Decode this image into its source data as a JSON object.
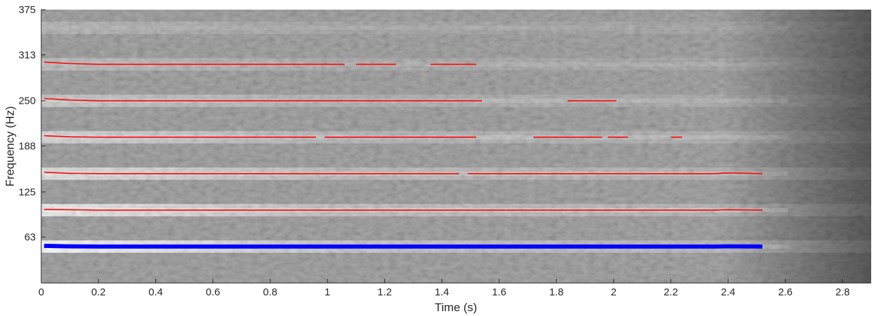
{
  "chart_data": {
    "type": "spectrogram",
    "xlabel": "Time (s)",
    "ylabel": "Frequency (Hz)",
    "xlim": [
      0,
      2.9
    ],
    "ylim": [
      0,
      375
    ],
    "xticks": [
      0,
      0.2,
      0.4,
      0.6,
      0.8,
      1,
      1.2,
      1.4,
      1.6,
      1.8,
      2,
      2.2,
      2.4,
      2.6,
      2.8
    ],
    "xtick_labels": [
      "0",
      "0.2",
      "0.4",
      "0.6",
      "0.8",
      "1",
      "1.2",
      "1.4",
      "1.6",
      "1.8",
      "2",
      "2.2",
      "2.4",
      "2.6",
      "2.8"
    ],
    "yticks": [
      63,
      125,
      188,
      250,
      313,
      375
    ],
    "ytick_labels": [
      "63",
      "125",
      "188",
      "250",
      "313",
      "375"
    ],
    "grid": false,
    "background": "grayscale spectrogram",
    "bright_harmonic_bands_hz": [
      50,
      100,
      150,
      200,
      250,
      300,
      350
    ],
    "fundamental_track": {
      "color": "#0000ff",
      "points": [
        [
          0.01,
          51
        ],
        [
          0.1,
          50.3
        ],
        [
          0.2,
          50
        ],
        [
          2.35,
          50
        ],
        [
          2.4,
          50.3
        ],
        [
          2.52,
          50
        ]
      ]
    },
    "harmonic_tracks": {
      "color": "#ff0000",
      "series": [
        {
          "segments": [
            [
              [
                0.01,
                101
              ],
              [
                0.1,
                100.5
              ],
              [
                0.2,
                100
              ],
              [
                2.35,
                100
              ],
              [
                2.4,
                100.5
              ],
              [
                2.52,
                100
              ]
            ]
          ]
        },
        {
          "segments": [
            [
              [
                0.01,
                152
              ],
              [
                0.1,
                150.5
              ],
              [
                0.2,
                150
              ],
              [
                1.46,
                150
              ]
            ],
            [
              [
                1.49,
                150
              ],
              [
                2.35,
                150
              ],
              [
                2.4,
                151
              ],
              [
                2.52,
                150
              ]
            ]
          ]
        },
        {
          "segments": [
            [
              [
                0.01,
                202
              ],
              [
                0.1,
                200.5
              ],
              [
                0.2,
                200
              ],
              [
                0.96,
                200
              ]
            ],
            [
              [
                0.99,
                200
              ],
              [
                1.52,
                200
              ]
            ],
            [
              [
                1.72,
                200
              ],
              [
                1.96,
                200
              ]
            ],
            [
              [
                1.98,
                200
              ],
              [
                2.05,
                200
              ]
            ],
            [
              [
                2.2,
                200
              ],
              [
                2.24,
                200
              ]
            ]
          ]
        },
        {
          "segments": [
            [
              [
                0.01,
                253
              ],
              [
                0.1,
                251
              ],
              [
                0.2,
                250
              ],
              [
                1.54,
                250
              ]
            ],
            [
              [
                1.84,
                250
              ],
              [
                2.01,
                250
              ]
            ]
          ]
        },
        {
          "segments": [
            [
              [
                0.01,
                303
              ],
              [
                0.1,
                301
              ],
              [
                0.2,
                300
              ],
              [
                1.06,
                300
              ]
            ],
            [
              [
                1.1,
                300
              ],
              [
                1.24,
                300
              ]
            ],
            [
              [
                1.36,
                300
              ],
              [
                1.52,
                300
              ]
            ]
          ]
        }
      ]
    }
  }
}
